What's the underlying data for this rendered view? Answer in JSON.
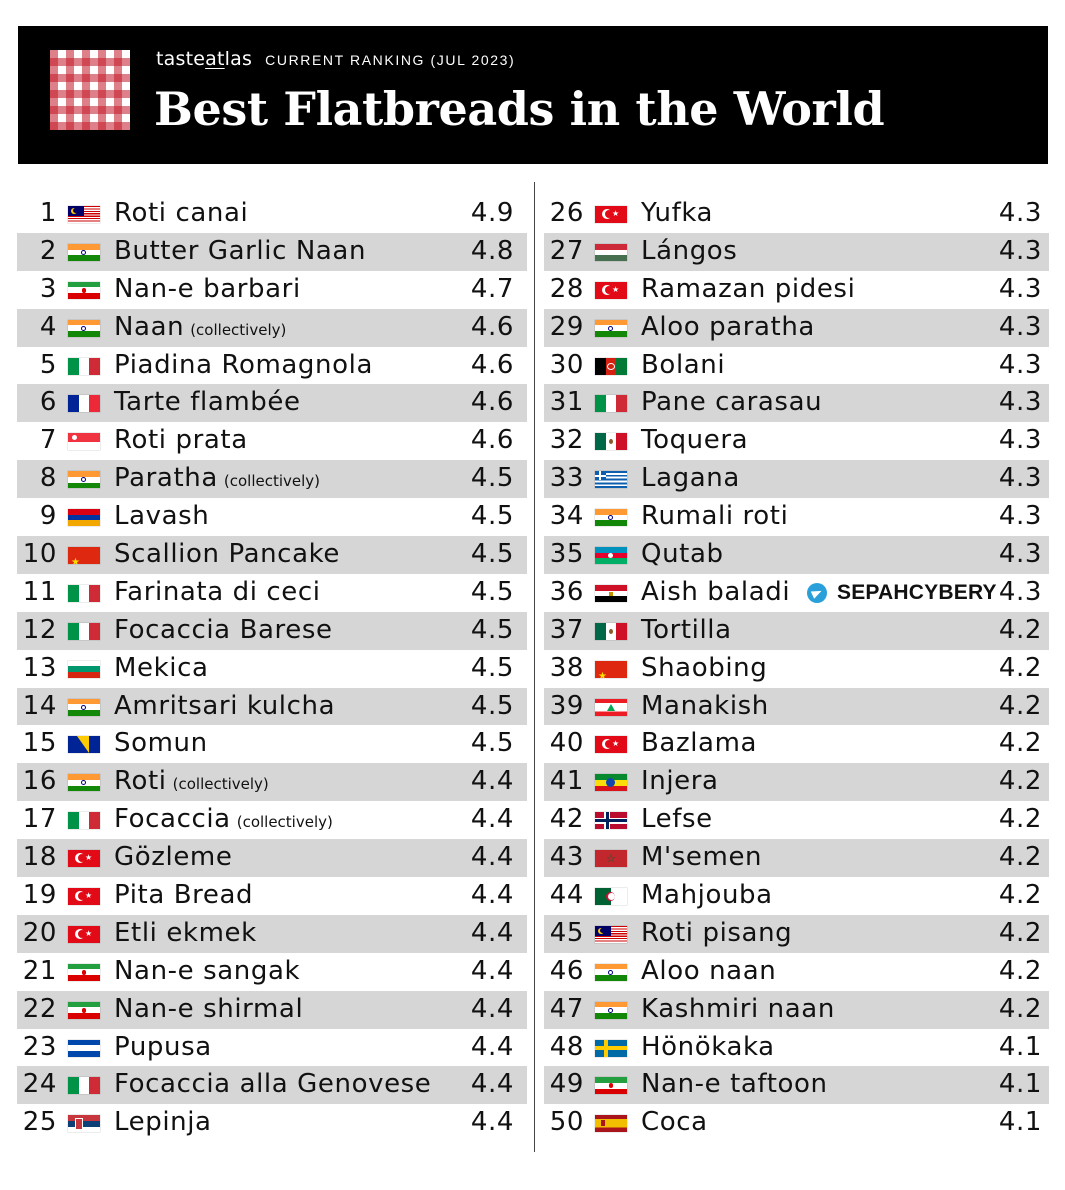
{
  "header": {
    "brand_pre": "taste",
    "brand_mid": "at",
    "brand_post": "las",
    "ranking_label": "CURRENT RANKING (JUL 2023)",
    "title": "Best Flatbreads in the World"
  },
  "watermark": {
    "text": "SEPAHCYBERY",
    "icon": "telegram-icon"
  },
  "colors": {
    "header_bg": "#000000",
    "alt_row": "#d6d6d6",
    "logo_red": "#c41828"
  },
  "rankings": [
    {
      "rank": "1",
      "name": "Roti canai",
      "note": "",
      "score": "4.9",
      "flag": "malaysia"
    },
    {
      "rank": "2",
      "name": "Butter Garlic Naan",
      "note": "",
      "score": "4.8",
      "flag": "india"
    },
    {
      "rank": "3",
      "name": "Nan-e barbari",
      "note": "",
      "score": "4.7",
      "flag": "iran"
    },
    {
      "rank": "4",
      "name": "Naan",
      "note": "(collectively)",
      "score": "4.6",
      "flag": "india"
    },
    {
      "rank": "5",
      "name": "Piadina Romagnola",
      "note": "",
      "score": "4.6",
      "flag": "italy"
    },
    {
      "rank": "6",
      "name": "Tarte flambée",
      "note": "",
      "score": "4.6",
      "flag": "france"
    },
    {
      "rank": "7",
      "name": "Roti prata",
      "note": "",
      "score": "4.6",
      "flag": "singapore"
    },
    {
      "rank": "8",
      "name": "Paratha",
      "note": "(collectively)",
      "score": "4.5",
      "flag": "india"
    },
    {
      "rank": "9",
      "name": "Lavash",
      "note": "",
      "score": "4.5",
      "flag": "armenia"
    },
    {
      "rank": "10",
      "name": "Scallion Pancake",
      "note": "",
      "score": "4.5",
      "flag": "china"
    },
    {
      "rank": "11",
      "name": "Farinata di ceci",
      "note": "",
      "score": "4.5",
      "flag": "italy"
    },
    {
      "rank": "12",
      "name": "Focaccia Barese",
      "note": "",
      "score": "4.5",
      "flag": "italy"
    },
    {
      "rank": "13",
      "name": "Mekica",
      "note": "",
      "score": "4.5",
      "flag": "bulgaria"
    },
    {
      "rank": "14",
      "name": "Amritsari kulcha",
      "note": "",
      "score": "4.5",
      "flag": "india"
    },
    {
      "rank": "15",
      "name": "Somun",
      "note": "",
      "score": "4.5",
      "flag": "bosnia"
    },
    {
      "rank": "16",
      "name": "Roti",
      "note": "(collectively)",
      "score": "4.4",
      "flag": "india"
    },
    {
      "rank": "17",
      "name": "Focaccia",
      "note": "(collectively)",
      "score": "4.4",
      "flag": "italy"
    },
    {
      "rank": "18",
      "name": "Gözleme",
      "note": "",
      "score": "4.4",
      "flag": "turkey"
    },
    {
      "rank": "19",
      "name": "Pita Bread",
      "note": "",
      "score": "4.4",
      "flag": "turkey"
    },
    {
      "rank": "20",
      "name": "Etli ekmek",
      "note": "",
      "score": "4.4",
      "flag": "turkey"
    },
    {
      "rank": "21",
      "name": "Nan-e sangak",
      "note": "",
      "score": "4.4",
      "flag": "iran"
    },
    {
      "rank": "22",
      "name": "Nan-e shirmal",
      "note": "",
      "score": "4.4",
      "flag": "iran"
    },
    {
      "rank": "23",
      "name": "Pupusa",
      "note": "",
      "score": "4.4",
      "flag": "el-salvador"
    },
    {
      "rank": "24",
      "name": "Focaccia alla Genovese",
      "note": "",
      "score": "4.4",
      "flag": "italy"
    },
    {
      "rank": "25",
      "name": "Lepinja",
      "note": "",
      "score": "4.4",
      "flag": "serbia"
    },
    {
      "rank": "26",
      "name": "Yufka",
      "note": "",
      "score": "4.3",
      "flag": "turkey"
    },
    {
      "rank": "27",
      "name": "Lángos",
      "note": "",
      "score": "4.3",
      "flag": "hungary"
    },
    {
      "rank": "28",
      "name": "Ramazan pidesi",
      "note": "",
      "score": "4.3",
      "flag": "turkey"
    },
    {
      "rank": "29",
      "name": "Aloo paratha",
      "note": "",
      "score": "4.3",
      "flag": "india"
    },
    {
      "rank": "30",
      "name": "Bolani",
      "note": "",
      "score": "4.3",
      "flag": "afghanistan"
    },
    {
      "rank": "31",
      "name": "Pane carasau",
      "note": "",
      "score": "4.3",
      "flag": "italy"
    },
    {
      "rank": "32",
      "name": "Toquera",
      "note": "",
      "score": "4.3",
      "flag": "mexico"
    },
    {
      "rank": "33",
      "name": "Lagana",
      "note": "",
      "score": "4.3",
      "flag": "greece"
    },
    {
      "rank": "34",
      "name": "Rumali roti",
      "note": "",
      "score": "4.3",
      "flag": "india"
    },
    {
      "rank": "35",
      "name": "Qutab",
      "note": "",
      "score": "4.3",
      "flag": "azerbaijan"
    },
    {
      "rank": "36",
      "name": "Aish baladi",
      "note": "",
      "score": "4.3",
      "flag": "egypt"
    },
    {
      "rank": "37",
      "name": "Tortilla",
      "note": "",
      "score": "4.2",
      "flag": "mexico"
    },
    {
      "rank": "38",
      "name": "Shaobing",
      "note": "",
      "score": "4.2",
      "flag": "china"
    },
    {
      "rank": "39",
      "name": "Manakish",
      "note": "",
      "score": "4.2",
      "flag": "lebanon"
    },
    {
      "rank": "40",
      "name": "Bazlama",
      "note": "",
      "score": "4.2",
      "flag": "turkey"
    },
    {
      "rank": "41",
      "name": "Injera",
      "note": "",
      "score": "4.2",
      "flag": "ethiopia"
    },
    {
      "rank": "42",
      "name": "Lefse",
      "note": "",
      "score": "4.2",
      "flag": "norway"
    },
    {
      "rank": "43",
      "name": "M'semen",
      "note": "",
      "score": "4.2",
      "flag": "morocco"
    },
    {
      "rank": "44",
      "name": "Mahjouba",
      "note": "",
      "score": "4.2",
      "flag": "algeria"
    },
    {
      "rank": "45",
      "name": "Roti pisang",
      "note": "",
      "score": "4.2",
      "flag": "malaysia"
    },
    {
      "rank": "46",
      "name": "Aloo naan",
      "note": "",
      "score": "4.2",
      "flag": "india"
    },
    {
      "rank": "47",
      "name": "Kashmiri naan",
      "note": "",
      "score": "4.2",
      "flag": "india"
    },
    {
      "rank": "48",
      "name": "Hönökaka",
      "note": "",
      "score": "4.1",
      "flag": "sweden"
    },
    {
      "rank": "49",
      "name": "Nan-e taftoon",
      "note": "",
      "score": "4.1",
      "flag": "iran"
    },
    {
      "rank": "50",
      "name": "Coca",
      "note": "",
      "score": "4.1",
      "flag": "spain"
    }
  ]
}
